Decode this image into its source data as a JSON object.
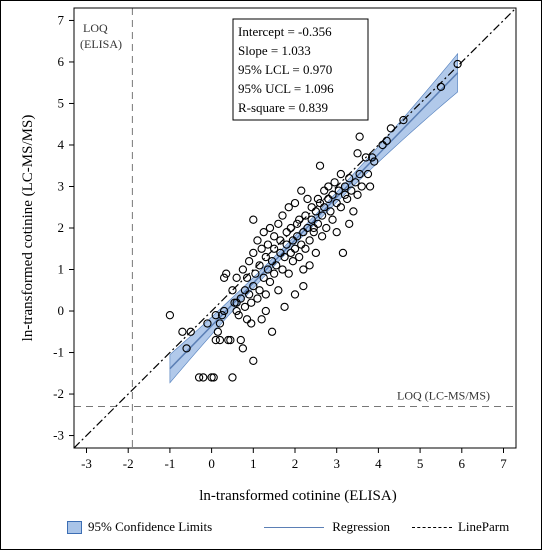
{
  "chart_data": {
    "type": "scatter",
    "xlabel": "ln-transformed cotinine (ELISA)",
    "ylabel": "ln-transformed cotinine (LC-MS/MS)",
    "xlim": [
      -3.3,
      7.3
    ],
    "ylim": [
      -3.3,
      7.3
    ],
    "xticks": [
      -3,
      -2,
      -1,
      0,
      1,
      2,
      3,
      4,
      5,
      6,
      7
    ],
    "yticks": [
      -3,
      -2,
      -1,
      0,
      1,
      2,
      3,
      4,
      5,
      6,
      7
    ],
    "stats": [
      "Intercept = -0.356",
      "Slope  =  1.033",
      "95% LCL = 0.970",
      "95% UCL = 1.096",
      "R-square = 0.839"
    ],
    "regression": {
      "intercept": -0.356,
      "slope": 1.033,
      "x_range": [
        -1.0,
        5.9
      ]
    },
    "confidence_band": {
      "lower_slope": 0.97,
      "upper_slope": 1.096
    },
    "identity_line": {
      "slope": 1,
      "intercept": 0
    },
    "loq": {
      "elisa": {
        "x": -1.9,
        "label": "LOQ\n(ELISA)"
      },
      "lcms": {
        "y": -2.3,
        "label": "LOQ (LC-MS/MS)"
      }
    },
    "legend": [
      {
        "label": "95% Confidence Limits",
        "kind": "band"
      },
      {
        "label": "Regression",
        "kind": "line"
      },
      {
        "label": "LineParm",
        "kind": "dashdot"
      }
    ],
    "colors": {
      "band": "#a9c4e8",
      "band_edge": "#3c6eb4",
      "regression": "#5b7fb5",
      "points": "#000000"
    },
    "points": [
      [
        -1.0,
        -0.1
      ],
      [
        -0.7,
        -0.5
      ],
      [
        -0.6,
        -0.9
      ],
      [
        -0.5,
        -0.5
      ],
      [
        -0.3,
        -1.6
      ],
      [
        -0.2,
        -1.6
      ],
      [
        -0.1,
        -0.3
      ],
      [
        0.0,
        -1.6
      ],
      [
        0.05,
        -1.6
      ],
      [
        0.1,
        -0.1
      ],
      [
        0.1,
        -0.7
      ],
      [
        0.15,
        -0.5
      ],
      [
        0.2,
        -0.3
      ],
      [
        0.25,
        -0.1
      ],
      [
        0.3,
        0.0
      ],
      [
        0.3,
        0.8
      ],
      [
        0.35,
        0.9
      ],
      [
        0.4,
        -0.7
      ],
      [
        0.45,
        -0.7
      ],
      [
        0.5,
        -1.6
      ],
      [
        0.5,
        0.5
      ],
      [
        0.55,
        0.2
      ],
      [
        0.6,
        0.0
      ],
      [
        0.6,
        0.8
      ],
      [
        0.65,
        -0.1
      ],
      [
        0.7,
        0.3
      ],
      [
        0.7,
        -0.7
      ],
      [
        0.75,
        -0.9
      ],
      [
        0.75,
        1.0
      ],
      [
        0.8,
        0.1
      ],
      [
        0.8,
        0.5
      ],
      [
        0.85,
        -0.2
      ],
      [
        0.85,
        0.8
      ],
      [
        0.9,
        0.4
      ],
      [
        0.9,
        1.2
      ],
      [
        0.95,
        -0.3
      ],
      [
        0.95,
        0.2
      ],
      [
        1.0,
        0.6
      ],
      [
        1.0,
        1.4
      ],
      [
        1.0,
        -1.2
      ],
      [
        1.0,
        2.2
      ],
      [
        1.05,
        0.9
      ],
      [
        1.1,
        0.3
      ],
      [
        1.1,
        1.7
      ],
      [
        1.15,
        0.5
      ],
      [
        1.15,
        1.1
      ],
      [
        1.2,
        1.5
      ],
      [
        1.2,
        -0.2
      ],
      [
        1.25,
        0.8
      ],
      [
        1.25,
        1.9
      ],
      [
        1.3,
        1.3
      ],
      [
        1.3,
        0.4
      ],
      [
        1.35,
        1.6
      ],
      [
        1.35,
        1.0
      ],
      [
        1.4,
        0.7
      ],
      [
        1.4,
        2.0
      ],
      [
        1.45,
        1.2
      ],
      [
        1.45,
        -0.5
      ],
      [
        1.5,
        1.8
      ],
      [
        1.5,
        0.9
      ],
      [
        1.5,
        1.5
      ],
      [
        1.55,
        1.1
      ],
      [
        1.6,
        2.1
      ],
      [
        1.6,
        0.5
      ],
      [
        1.65,
        1.4
      ],
      [
        1.65,
        1.7
      ],
      [
        1.7,
        1.0
      ],
      [
        1.7,
        2.3
      ],
      [
        1.75,
        1.3
      ],
      [
        1.75,
        0.1
      ],
      [
        1.8,
        1.9
      ],
      [
        1.8,
        1.6
      ],
      [
        1.85,
        0.9
      ],
      [
        1.85,
        2.5
      ],
      [
        1.9,
        1.4
      ],
      [
        1.9,
        2.0
      ],
      [
        1.95,
        1.2
      ],
      [
        1.95,
        1.7
      ],
      [
        2.0,
        1.5
      ],
      [
        2.0,
        2.6
      ],
      [
        2.0,
        0.4
      ],
      [
        2.05,
        2.1
      ],
      [
        2.05,
        1.8
      ],
      [
        2.1,
        1.3
      ],
      [
        2.1,
        2.2
      ],
      [
        2.15,
        1.6
      ],
      [
        2.15,
        2.9
      ],
      [
        2.2,
        1.9
      ],
      [
        2.2,
        0.6
      ],
      [
        2.25,
        2.3
      ],
      [
        2.25,
        1.5
      ],
      [
        2.3,
        2.0
      ],
      [
        2.3,
        2.7
      ],
      [
        2.35,
        1.7
      ],
      [
        2.35,
        1.1
      ],
      [
        2.4,
        2.2
      ],
      [
        2.4,
        2.5
      ],
      [
        2.45,
        1.9
      ],
      [
        2.45,
        2.0
      ],
      [
        2.5,
        2.4
      ],
      [
        2.5,
        1.4
      ],
      [
        2.55,
        2.7
      ],
      [
        2.55,
        2.1
      ],
      [
        2.6,
        2.6
      ],
      [
        2.6,
        3.5
      ],
      [
        2.65,
        2.3
      ],
      [
        2.65,
        1.8
      ],
      [
        2.7,
        2.9
      ],
      [
        2.7,
        2.5
      ],
      [
        2.75,
        2.0
      ],
      [
        2.8,
        2.7
      ],
      [
        2.8,
        3.0
      ],
      [
        2.85,
        2.4
      ],
      [
        2.9,
        2.8
      ],
      [
        2.9,
        2.2
      ],
      [
        2.95,
        3.1
      ],
      [
        3.0,
        2.6
      ],
      [
        3.0,
        1.9
      ],
      [
        3.05,
        2.9
      ],
      [
        3.1,
        3.3
      ],
      [
        3.1,
        2.5
      ],
      [
        3.15,
        1.4
      ],
      [
        3.2,
        2.8
      ],
      [
        3.2,
        3.0
      ],
      [
        3.25,
        2.7
      ],
      [
        3.3,
        3.2
      ],
      [
        3.3,
        2.1
      ],
      [
        3.35,
        2.9
      ],
      [
        3.4,
        2.4
      ],
      [
        3.45,
        3.1
      ],
      [
        3.5,
        3.8
      ],
      [
        3.5,
        2.8
      ],
      [
        3.55,
        3.3
      ],
      [
        3.55,
        4.2
      ],
      [
        3.6,
        3.0
      ],
      [
        3.7,
        3.7
      ],
      [
        3.75,
        3.3
      ],
      [
        3.8,
        3.0
      ],
      [
        3.85,
        3.7
      ],
      [
        3.9,
        3.6
      ],
      [
        4.1,
        4.0
      ],
      [
        4.2,
        4.1
      ],
      [
        4.3,
        4.4
      ],
      [
        4.6,
        4.6
      ],
      [
        5.5,
        5.4
      ],
      [
        5.9,
        5.95
      ],
      [
        0.2,
        -0.7
      ],
      [
        0.6,
        0.2
      ],
      [
        1.3,
        0.0
      ],
      [
        2.2,
        1.0
      ]
    ]
  }
}
